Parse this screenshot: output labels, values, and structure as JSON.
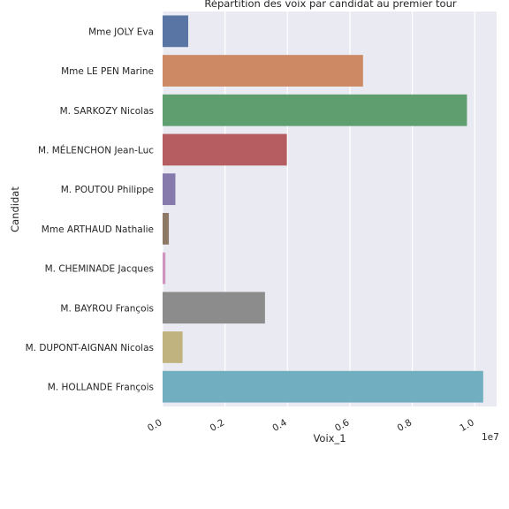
{
  "chart_data": {
    "type": "bar",
    "orientation": "horizontal",
    "title": "Répartition des voix par candidat au premier tour",
    "xlabel": "Voix_1",
    "ylabel": "Candidat",
    "x_multiplier_label": "1e7",
    "xlim": [
      0,
      1.07
    ],
    "xticks": [
      "0.0",
      "0.2",
      "0.4",
      "0.6",
      "0.8",
      "1.0"
    ],
    "xtick_values": [
      0.0,
      0.2,
      0.4,
      0.6,
      0.8,
      1.0
    ],
    "grid": true,
    "categories": [
      "Mme JOLY Eva",
      "Mme LE PEN Marine",
      "M. SARKOZY Nicolas",
      "M. MÉLENCHON Jean-Luc",
      "M. POUTOU Philippe",
      "Mme ARTHAUD Nathalie",
      "M. CHEMINADE Jacques",
      "M. BAYROU François",
      "M. DUPONT-AIGNAN Nicolas",
      "M. HOLLANDE François"
    ],
    "values": [
      0.082,
      0.642,
      0.975,
      0.398,
      0.041,
      0.02,
      0.009,
      0.328,
      0.064,
      1.027
    ],
    "colors": [
      "#5975a4",
      "#cc8963",
      "#5f9e6e",
      "#b55d60",
      "#857aab",
      "#8d7866",
      "#d095bf",
      "#8c8c8c",
      "#c1b37f",
      "#71aec0"
    ],
    "background": "#eaeaf2",
    "grid_color": "#ffffff"
  }
}
